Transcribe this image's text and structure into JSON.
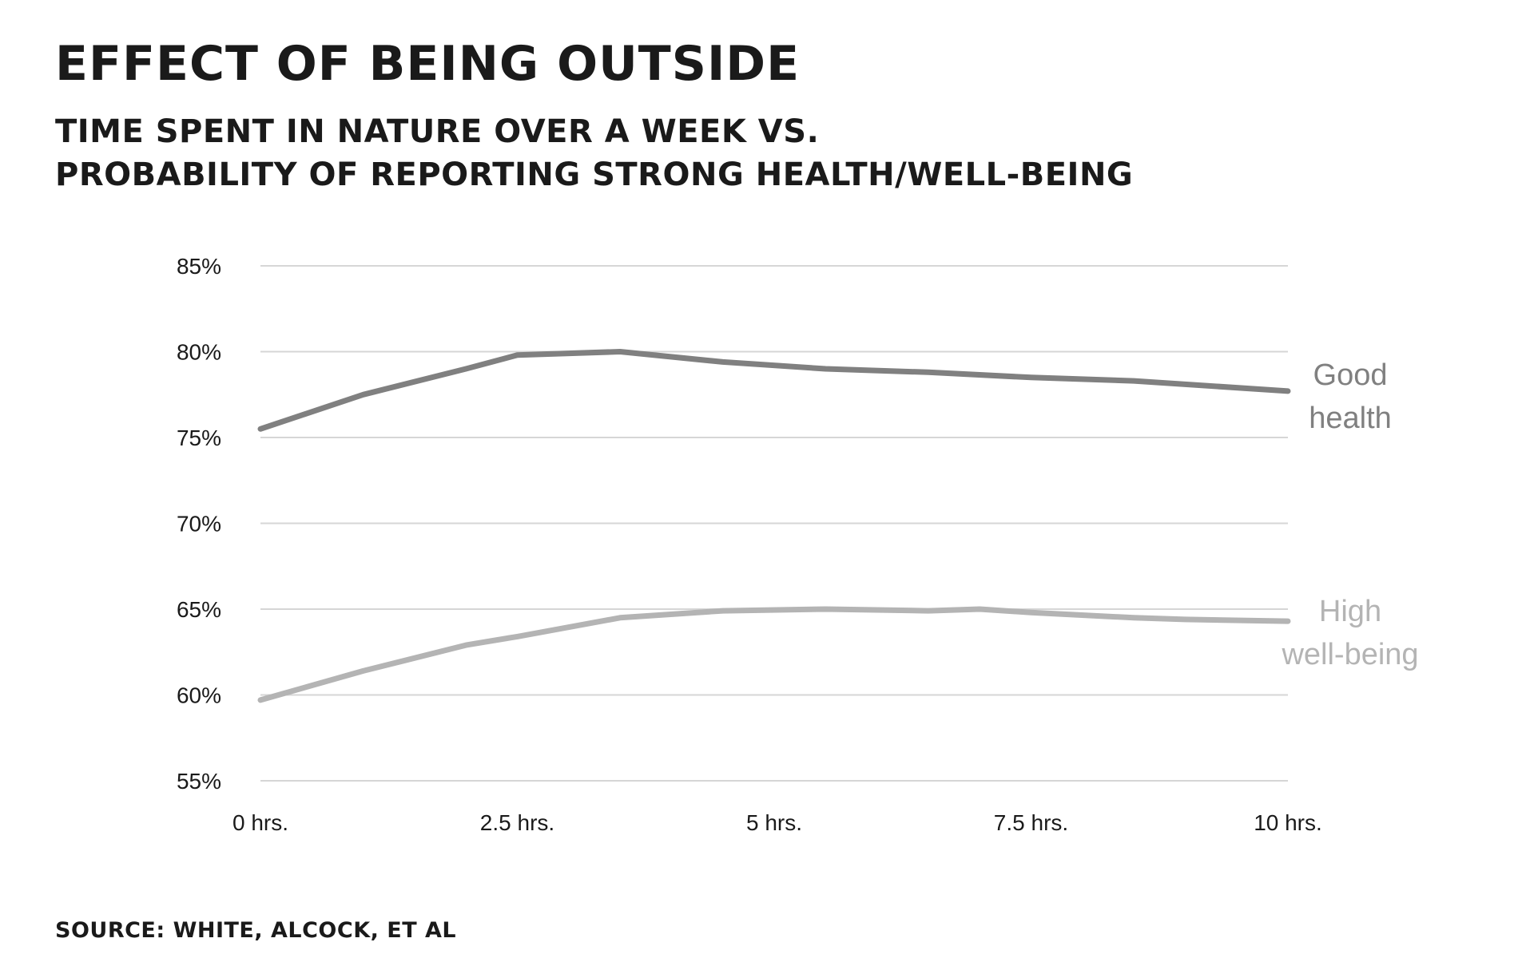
{
  "header": {
    "title": "EFFECT OF BEING OUTSIDE",
    "subtitle_line1": "TIME SPENT IN NATURE OVER A WEEK VS.",
    "subtitle_line2": "PROBABILITY OF REPORTING STRONG HEALTH/WELL-BEING"
  },
  "footer": {
    "source": "SOURCE: WHITE, ALCOCK, ET AL"
  },
  "chart_data": {
    "type": "line",
    "title": "EFFECT OF BEING OUTSIDE",
    "subtitle": "TIME SPENT IN NATURE OVER A WEEK VS. PROBABILITY OF REPORTING STRONG HEALTH/WELL-BEING",
    "xlabel": "",
    "ylabel": "",
    "x": [
      0,
      1,
      2,
      2.5,
      3.5,
      4.5,
      5.5,
      6.5,
      7,
      7.5,
      8.5,
      9,
      10
    ],
    "x_ticks": [
      0,
      2.5,
      5,
      7.5,
      10
    ],
    "x_tick_labels": [
      "0 hrs.",
      "2.5 hrs.",
      "5 hrs.",
      "7.5 hrs.",
      "10 hrs."
    ],
    "xlim": [
      0,
      10
    ],
    "y_ticks": [
      55,
      60,
      65,
      70,
      75,
      80,
      85
    ],
    "y_tick_labels": [
      "55%",
      "60%",
      "65%",
      "70%",
      "75%",
      "80%",
      "85%"
    ],
    "ylim": [
      55,
      85
    ],
    "grid": true,
    "legend": "inline labels at right end of lines",
    "series": [
      {
        "name": "Good health",
        "label_lines": [
          "Good",
          "health"
        ],
        "color": "#808080",
        "x": [
          0,
          1,
          2,
          2.5,
          3.5,
          4.5,
          5.5,
          6.5,
          7.5,
          8.5,
          10
        ],
        "values": [
          75.5,
          77.5,
          79.0,
          79.8,
          80.0,
          79.4,
          79.0,
          78.8,
          78.5,
          78.3,
          77.7
        ]
      },
      {
        "name": "High well-being",
        "label_lines": [
          "High",
          "well-being"
        ],
        "color": "#b4b4b4",
        "x": [
          0,
          1,
          2,
          2.5,
          3.5,
          4.5,
          5.5,
          6.5,
          7,
          7.5,
          8.5,
          9,
          10
        ],
        "values": [
          59.7,
          61.4,
          62.9,
          63.4,
          64.5,
          64.9,
          65.0,
          64.9,
          65.0,
          64.8,
          64.5,
          64.4,
          64.3
        ]
      }
    ]
  }
}
